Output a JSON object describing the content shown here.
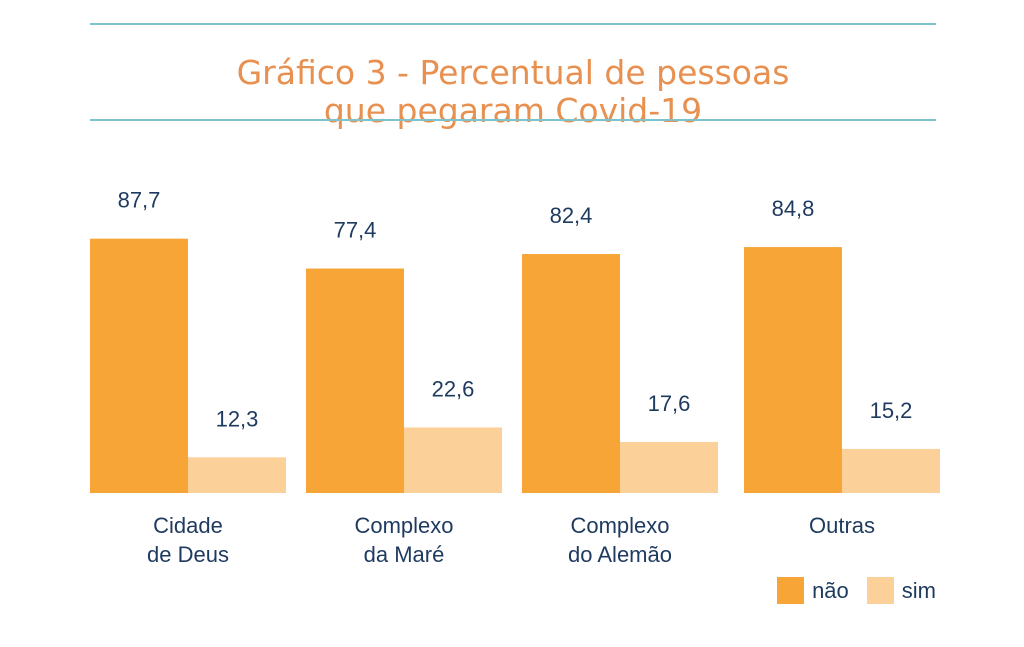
{
  "title_lines": [
    "Gráfico 3 -  Percentual de pessoas",
    "que pegaram Covid-19"
  ],
  "colors": {
    "nao": "#f6a536",
    "sim": "#fcd199",
    "rule": "#7ec3cc",
    "title": "#e8904f",
    "text": "#1e3a5f"
  },
  "legend": {
    "nao_label": "não",
    "sim_label": "sim"
  },
  "chart_data": {
    "type": "bar",
    "title": "Gráfico 3 -  Percentual de pessoas que pegaram Covid-19",
    "categories": [
      [
        "Cidade",
        "de Deus"
      ],
      [
        "Complexo",
        "da Maré"
      ],
      [
        "Complexo",
        "do Alemão"
      ],
      [
        "Outras"
      ]
    ],
    "series": [
      {
        "name": "não",
        "values": [
          87.7,
          77.4,
          82.4,
          84.8
        ],
        "labels": [
          "87,7",
          "77,4",
          "82,4",
          "84,8"
        ]
      },
      {
        "name": "sim",
        "values": [
          12.3,
          22.6,
          17.6,
          15.2
        ],
        "labels": [
          "12,3",
          "22,6",
          "17,6",
          "15,2"
        ]
      }
    ],
    "ylim": [
      0,
      100
    ],
    "grid": false,
    "legend_position": "bottom-right"
  }
}
